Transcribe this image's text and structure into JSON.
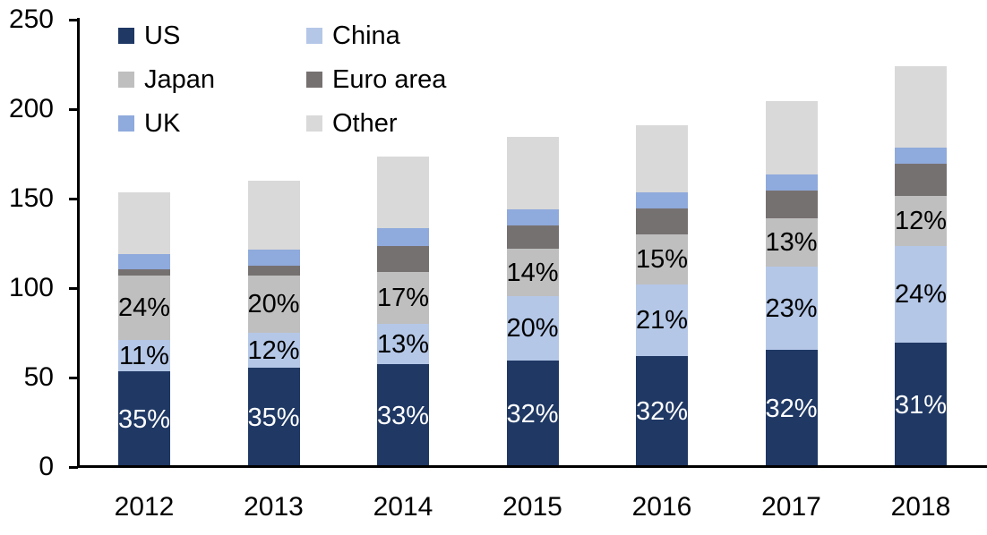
{
  "chart_data": {
    "type": "bar",
    "stacked": true,
    "title": "",
    "categories": [
      "2012",
      "2013",
      "2014",
      "2015",
      "2016",
      "2017",
      "2018"
    ],
    "series": [
      {
        "name": "US",
        "color": "#1F3864",
        "values": [
          53.5,
          55.5,
          57.5,
          59.5,
          62,
          65.5,
          69.5
        ],
        "labels": [
          "35%",
          "35%",
          "33%",
          "32%",
          "32%",
          "32%",
          "31%"
        ],
        "label_color": "#FFFFFF"
      },
      {
        "name": "China",
        "color": "#B4C7E7",
        "values": [
          17.5,
          19.5,
          22.5,
          36,
          40,
          46.5,
          54
        ],
        "labels": [
          "11%",
          "12%",
          "13%",
          "20%",
          "21%",
          "23%",
          "24%"
        ],
        "label_color": "#000000"
      },
      {
        "name": "Japan",
        "color": "#BFBFBF",
        "values": [
          36,
          32,
          29,
          26.5,
          28,
          27,
          28
        ],
        "labels": [
          "24%",
          "20%",
          "17%",
          "14%",
          "15%",
          "13%",
          "12%"
        ],
        "label_color": "#000000"
      },
      {
        "name": "Euro area",
        "color": "#767171",
        "values": [
          3.5,
          5.5,
          14.5,
          13,
          14.5,
          15.5,
          18
        ],
        "labels": null,
        "label_color": null
      },
      {
        "name": "UK",
        "color": "#8FAADC",
        "values": [
          8.5,
          9,
          10,
          9,
          9,
          9,
          9
        ],
        "labels": null,
        "label_color": null
      },
      {
        "name": "Other",
        "color": "#D9D9D9",
        "values": [
          34.5,
          38.5,
          40,
          40.5,
          37.5,
          41,
          45.5
        ],
        "labels": null,
        "label_color": null
      }
    ],
    "totals": [
      153.5,
      160,
      173.5,
      184.5,
      191,
      204.5,
      224
    ],
    "y_axis": {
      "min": 0,
      "max": 250,
      "ticks": [
        0,
        50,
        100,
        150,
        200,
        250
      ]
    },
    "x_axis": {
      "label": ""
    },
    "grid": false,
    "legend": {
      "position": "top-left",
      "columns": 2,
      "order": [
        "US",
        "China",
        "Japan",
        "Euro area",
        "UK",
        "Other"
      ]
    }
  }
}
